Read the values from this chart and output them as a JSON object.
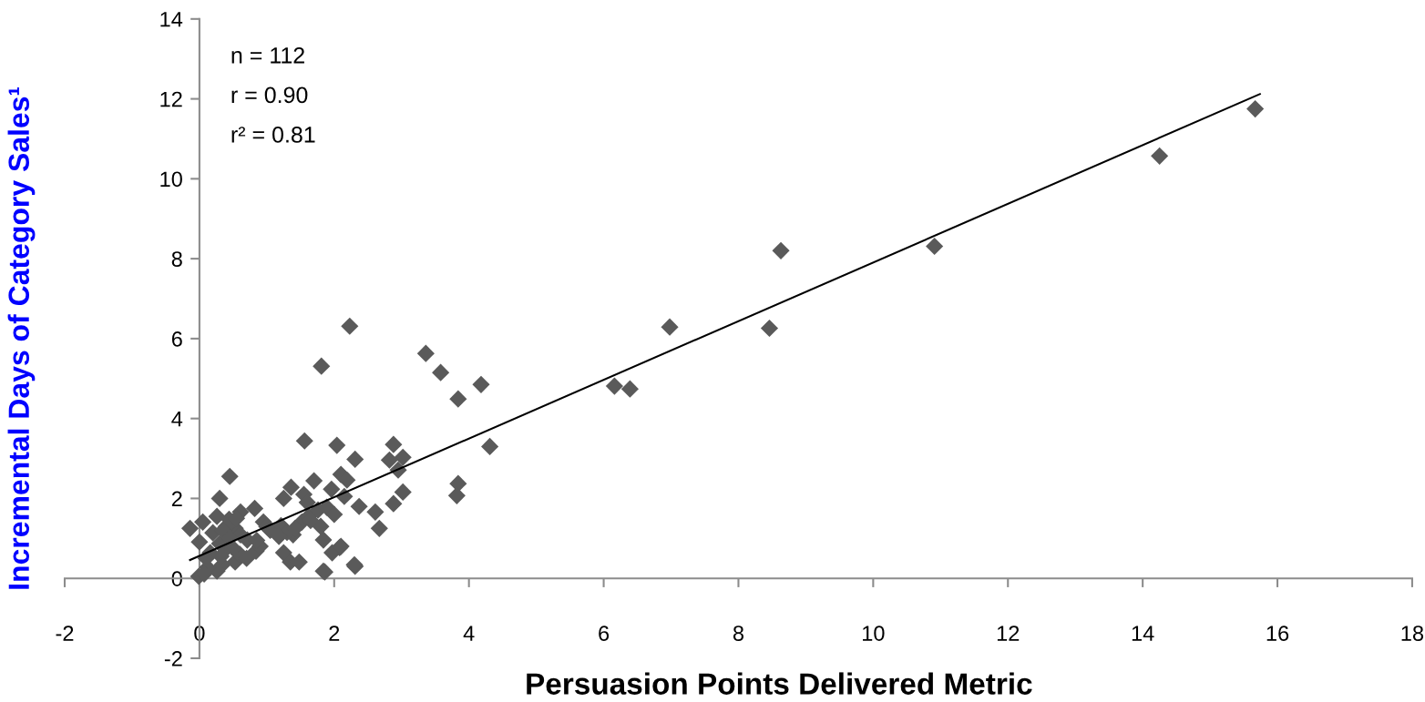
{
  "chart_data": {
    "type": "scatter",
    "xlabel": "Persuasion Points Delivered Metric",
    "ylabel": "Incremental Days of Category Sales¹",
    "annotations": [
      "n = 112",
      "r = 0.90",
      "r² = 0.81"
    ],
    "xlim": [
      -2,
      18
    ],
    "xticks": [
      -2,
      0,
      2,
      4,
      6,
      8,
      10,
      12,
      14,
      16,
      18
    ],
    "ylim": [
      -2,
      14
    ],
    "yticks": [
      -2,
      0,
      2,
      4,
      6,
      8,
      10,
      12,
      14
    ],
    "grid": false,
    "legend": false,
    "marker": "diamond",
    "series": [
      {
        "color": "#5a5a5a",
        "x": [
          15.67,
          14.25,
          10.91,
          8.63,
          8.46,
          6.98,
          6.16,
          6.39,
          4.18,
          3.84,
          4.31,
          3.36,
          3.58,
          2.23,
          1.81,
          3.84,
          3.82,
          2.88,
          3.02,
          2.82,
          2.95,
          3.02,
          2.88,
          2.61,
          2.67,
          2.31,
          2.04,
          1.56,
          2.1,
          2.19,
          2.15,
          2.37,
          2.31,
          2.08,
          1.86,
          0.45,
          1.7,
          0.3,
          1.25,
          1.36,
          1.55,
          1.96,
          0.82,
          0.61,
          0.44,
          0.26,
          0.05,
          -0.14,
          0.0,
          0.2,
          0.53,
          0.71,
          0.95,
          1.21,
          1.39,
          1.52,
          1.62,
          1.76,
          1.89,
          1.8,
          1.84,
          1.97,
          2.1,
          1.84,
          1.25,
          1.35,
          1.48,
          2.3,
          0.84,
          0.53,
          0.34,
          0.26,
          0.12,
          -0.01,
          0.07,
          0.39,
          0.3,
          0.16,
          0.61,
          0.9,
          1.05,
          0.4,
          0.35,
          0.55,
          0.1,
          0.85,
          1.0,
          1.3,
          1.6,
          0.6,
          0.45,
          1.18,
          1.42,
          1.65,
          2.0,
          0.32,
          0.5,
          0.7
        ],
        "values": [
          11.75,
          10.57,
          8.31,
          8.2,
          6.26,
          6.29,
          4.81,
          4.74,
          4.85,
          4.49,
          3.3,
          5.63,
          5.15,
          6.31,
          5.31,
          2.37,
          2.07,
          3.35,
          3.03,
          2.96,
          2.71,
          2.16,
          1.87,
          1.66,
          1.25,
          2.98,
          3.33,
          3.44,
          2.6,
          2.46,
          2.05,
          1.8,
          0.3,
          0.77,
          0.16,
          2.55,
          2.44,
          2.0,
          2.0,
          2.28,
          2.1,
          2.23,
          1.75,
          1.66,
          1.48,
          1.55,
          1.41,
          1.25,
          0.91,
          1.14,
          1.25,
          0.96,
          1.41,
          1.32,
          1.09,
          1.41,
          1.55,
          1.71,
          1.78,
          1.3,
          0.96,
          0.64,
          0.8,
          0.18,
          0.64,
          0.41,
          0.41,
          0.34,
          0.68,
          0.41,
          0.34,
          0.18,
          0.27,
          0.05,
          0.11,
          0.73,
          0.87,
          0.64,
          1.09,
          0.8,
          1.2,
          1.3,
          1.2,
          1.5,
          0.5,
          0.95,
          1.3,
          1.15,
          1.9,
          0.6,
          1.0,
          1.05,
          1.25,
          1.45,
          1.6,
          0.55,
          0.75,
          0.5
        ]
      },
      {
        "type": "line",
        "color": "#000000",
        "marker": "none",
        "line_style": "solid",
        "x": [
          -0.14,
          15.74
        ],
        "values": [
          0.46,
          12.12
        ]
      }
    ]
  }
}
